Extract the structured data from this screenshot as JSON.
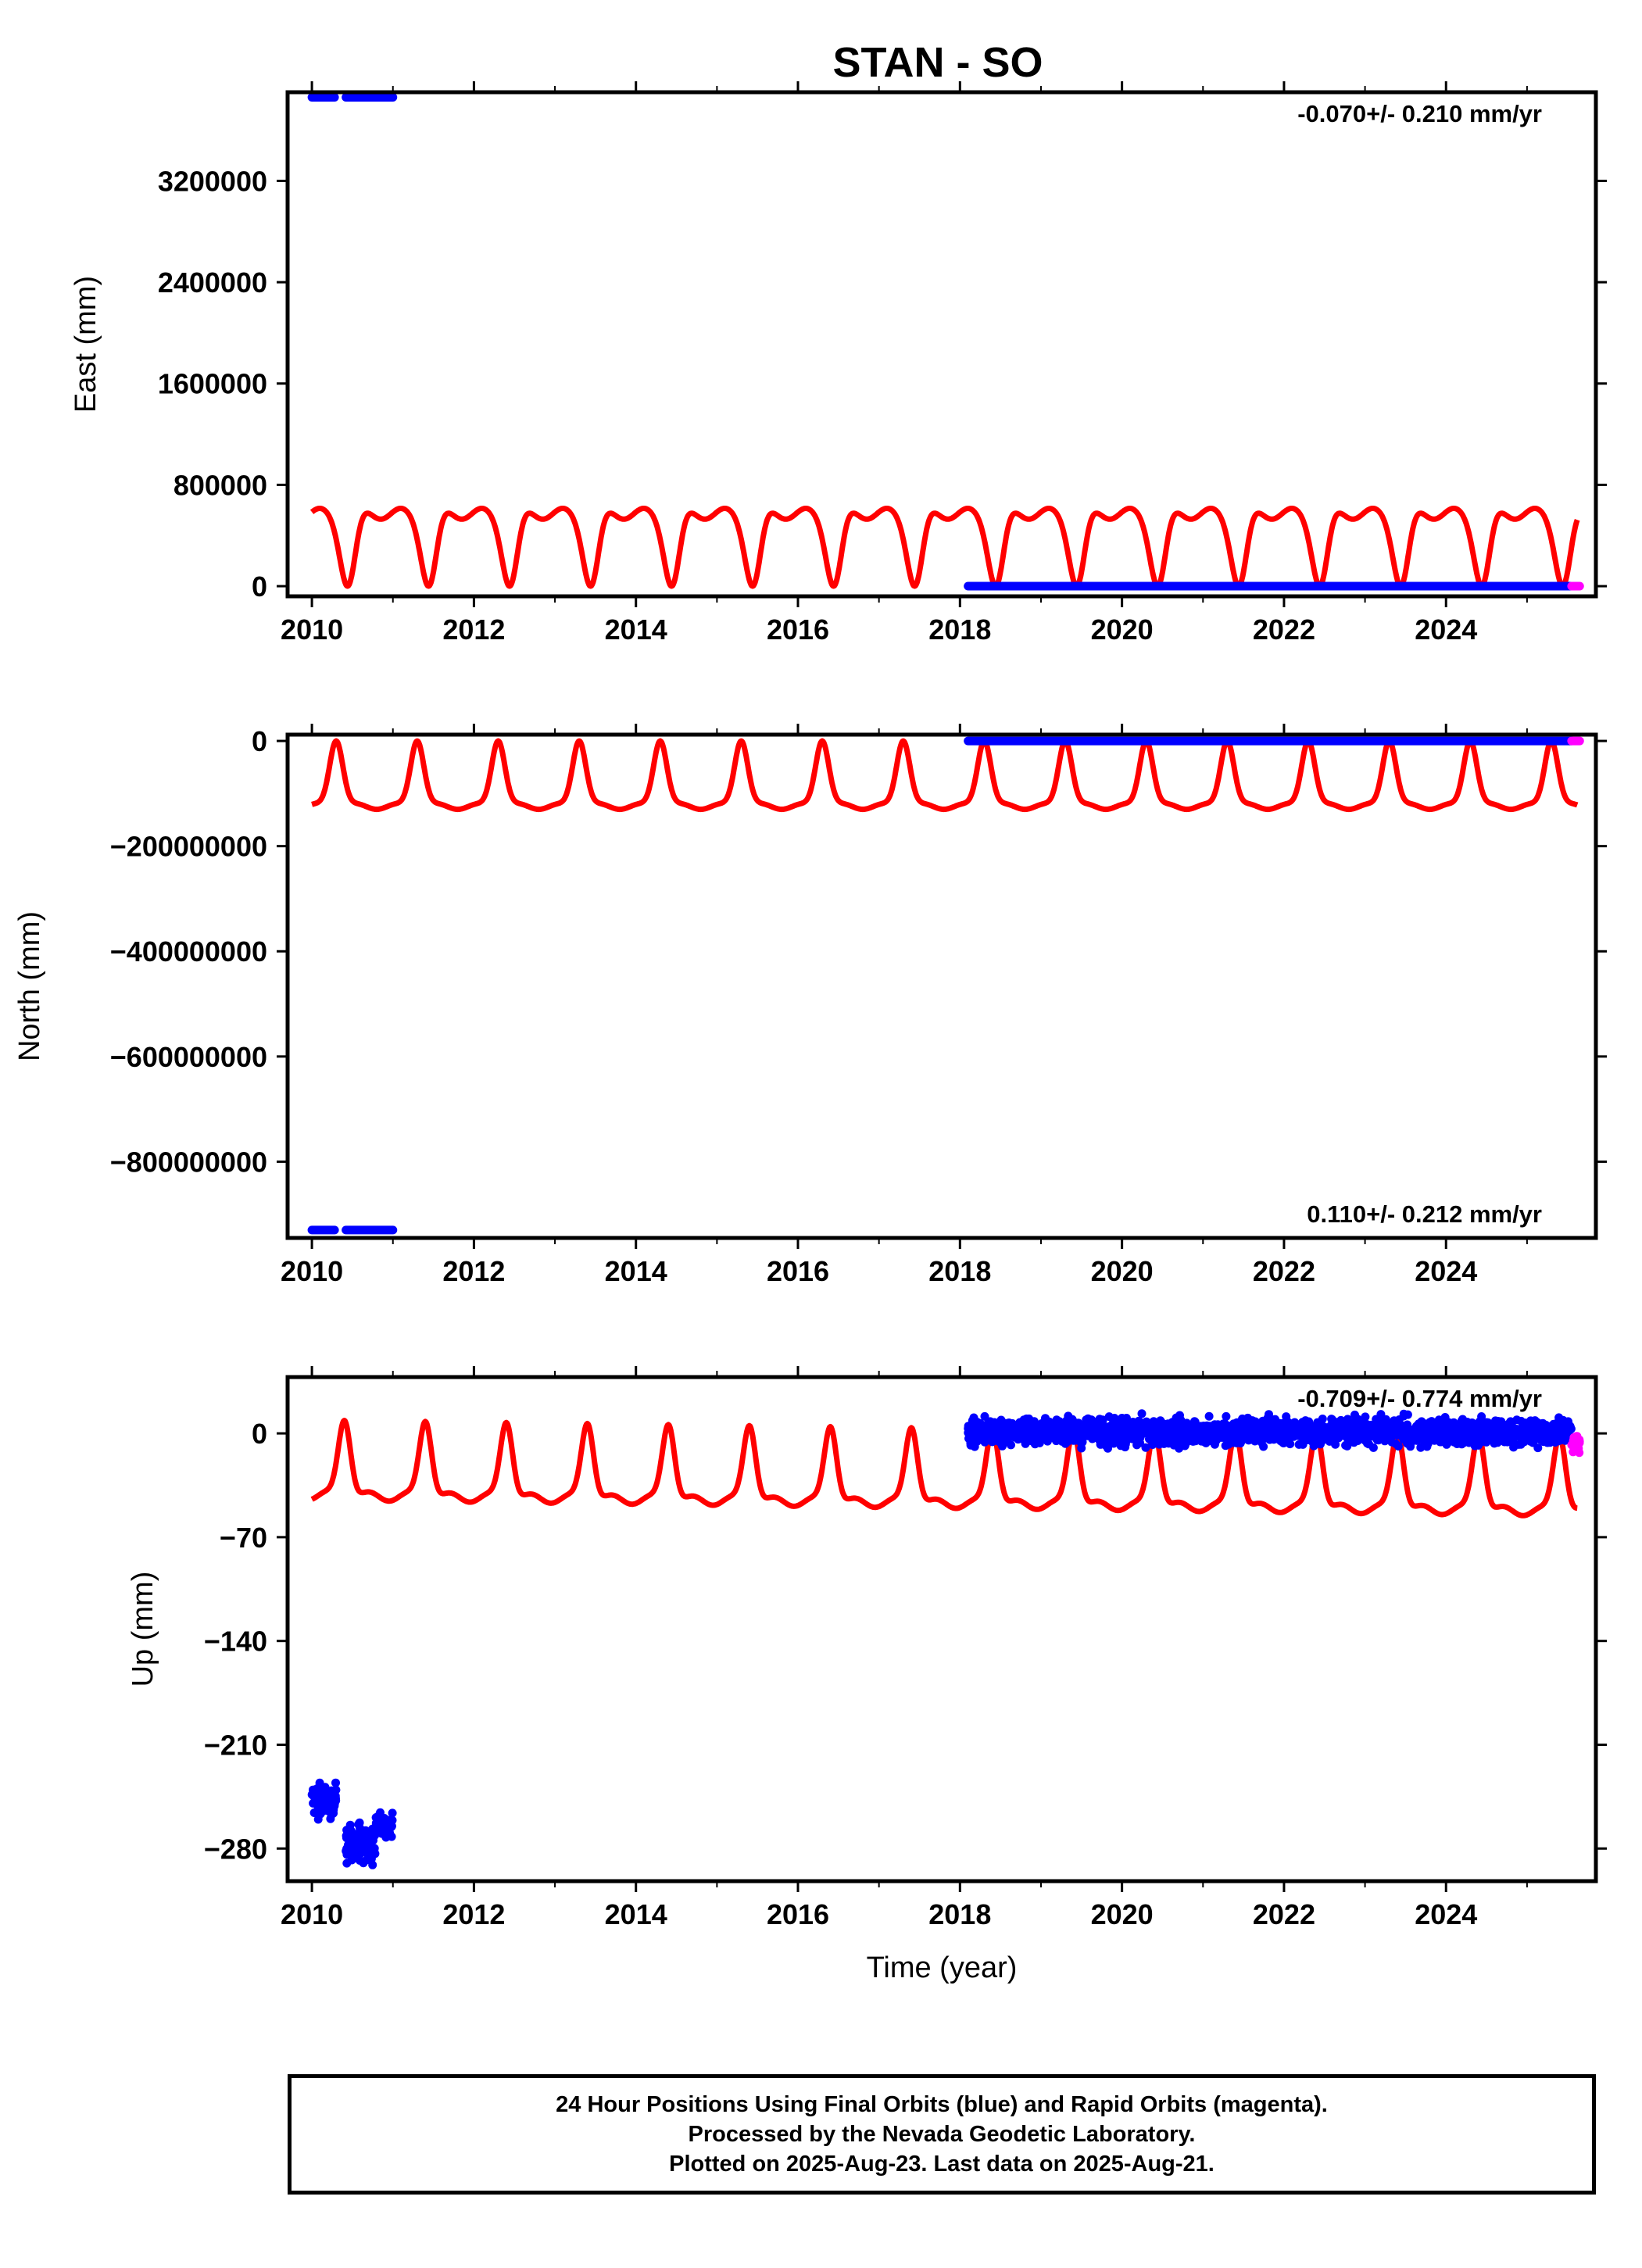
{
  "title": "STAN - SO",
  "colors": {
    "final": "#0000ff",
    "rapid": "#ff00ff",
    "model": "#ff0000",
    "frame": "#000000"
  },
  "footer": {
    "line1": "24 Hour Positions Using Final Orbits (blue) and Rapid Orbits (magenta).",
    "line2": "Processed by the Nevada Geodetic Laboratory.",
    "line3": "Plotted on 2025-Aug-23. Last data on 2025-Aug-21."
  },
  "chart_data": [
    {
      "type": "scatter",
      "component": "East",
      "ylabel": "East (mm)",
      "xlabel": "",
      "xlim": [
        2009.7,
        2025.85
      ],
      "ylim": [
        -80000,
        3900000
      ],
      "xticks": [
        2010,
        2012,
        2014,
        2016,
        2018,
        2020,
        2022,
        2024
      ],
      "yticks": [
        0,
        800000,
        1600000,
        2400000,
        3200000
      ],
      "ytick_labels": [
        "0",
        "800000",
        "1600000",
        "2400000",
        "3200000"
      ],
      "rate": "-0.070+/- 0.210 mm/yr",
      "rate_position": "top-right",
      "model": {
        "baseline": 0,
        "amplitude": 615000,
        "min_phase": 0.44,
        "shape": "double-hump",
        "end_value": 580000
      },
      "final_segments": [
        [
          2010.0,
          2010.28,
          3860000
        ],
        [
          2010.42,
          2011.0,
          3860000
        ],
        [
          2018.1,
          2025.55,
          0
        ]
      ],
      "rapid_segment": [
        2025.55,
        2025.65,
        0
      ],
      "scatter_clusters": []
    },
    {
      "type": "scatter",
      "component": "North",
      "ylabel": "North (mm)",
      "xlabel": "",
      "xlim": [
        2009.7,
        2025.85
      ],
      "ylim": [
        -945000000,
        12000000
      ],
      "xticks": [
        2010,
        2012,
        2014,
        2016,
        2018,
        2020,
        2022,
        2024
      ],
      "yticks": [
        0,
        -200000000,
        -400000000,
        -600000000,
        -800000000
      ],
      "ytick_labels": [
        "0",
        "−200000000",
        "−400000000",
        "−600000000",
        "−800000000"
      ],
      "rate": "0.110+/- 0.212 mm/yr",
      "rate_position": "bottom-right",
      "model": {
        "peak": 0,
        "trough": -125000000,
        "mid": -120000000,
        "peak_phase": 0.3
      },
      "final_segments": [
        [
          2010.0,
          2010.28,
          -930000000
        ],
        [
          2010.42,
          2011.0,
          -930000000
        ],
        [
          2018.1,
          2025.55,
          0
        ]
      ],
      "rapid_segment": [
        2025.55,
        2025.65,
        0
      ],
      "scatter_clusters": []
    },
    {
      "type": "scatter",
      "component": "Up",
      "ylabel": "Up (mm)",
      "xlabel": "Time (year)",
      "xlim": [
        2009.7,
        2025.85
      ],
      "ylim": [
        -302,
        38
      ],
      "xticks": [
        2010,
        2012,
        2014,
        2016,
        2018,
        2020,
        2022,
        2024
      ],
      "yticks": [
        0,
        -70,
        -140,
        -210,
        -280
      ],
      "ytick_labels": [
        "0",
        "−70",
        "−140",
        "−210",
        "−280"
      ],
      "rate": "-0.709+/- 0.774 mm/yr",
      "rate_position": "top-right",
      "model": {
        "start": -38,
        "peak_start": 9,
        "trough_start": -42,
        "drift_per_year": -0.7,
        "peak_phase": 0.4
      },
      "final_segments": [],
      "rapid_segment": [],
      "scatter_clusters": [
        {
          "x0": 2010.0,
          "x1": 2010.3,
          "y": -248,
          "spread": 14,
          "color": "final"
        },
        {
          "x0": 2010.42,
          "x1": 2010.78,
          "y": -277,
          "spread": 16,
          "color": "final"
        },
        {
          "x0": 2010.78,
          "x1": 2011.0,
          "y": -264,
          "spread": 10,
          "color": "final"
        },
        {
          "x0": 2018.1,
          "x1": 2025.55,
          "y": 1,
          "spread": 11,
          "color": "final"
        },
        {
          "x0": 2025.55,
          "x1": 2025.65,
          "y": -7,
          "spread": 9,
          "color": "rapid"
        }
      ]
    }
  ]
}
